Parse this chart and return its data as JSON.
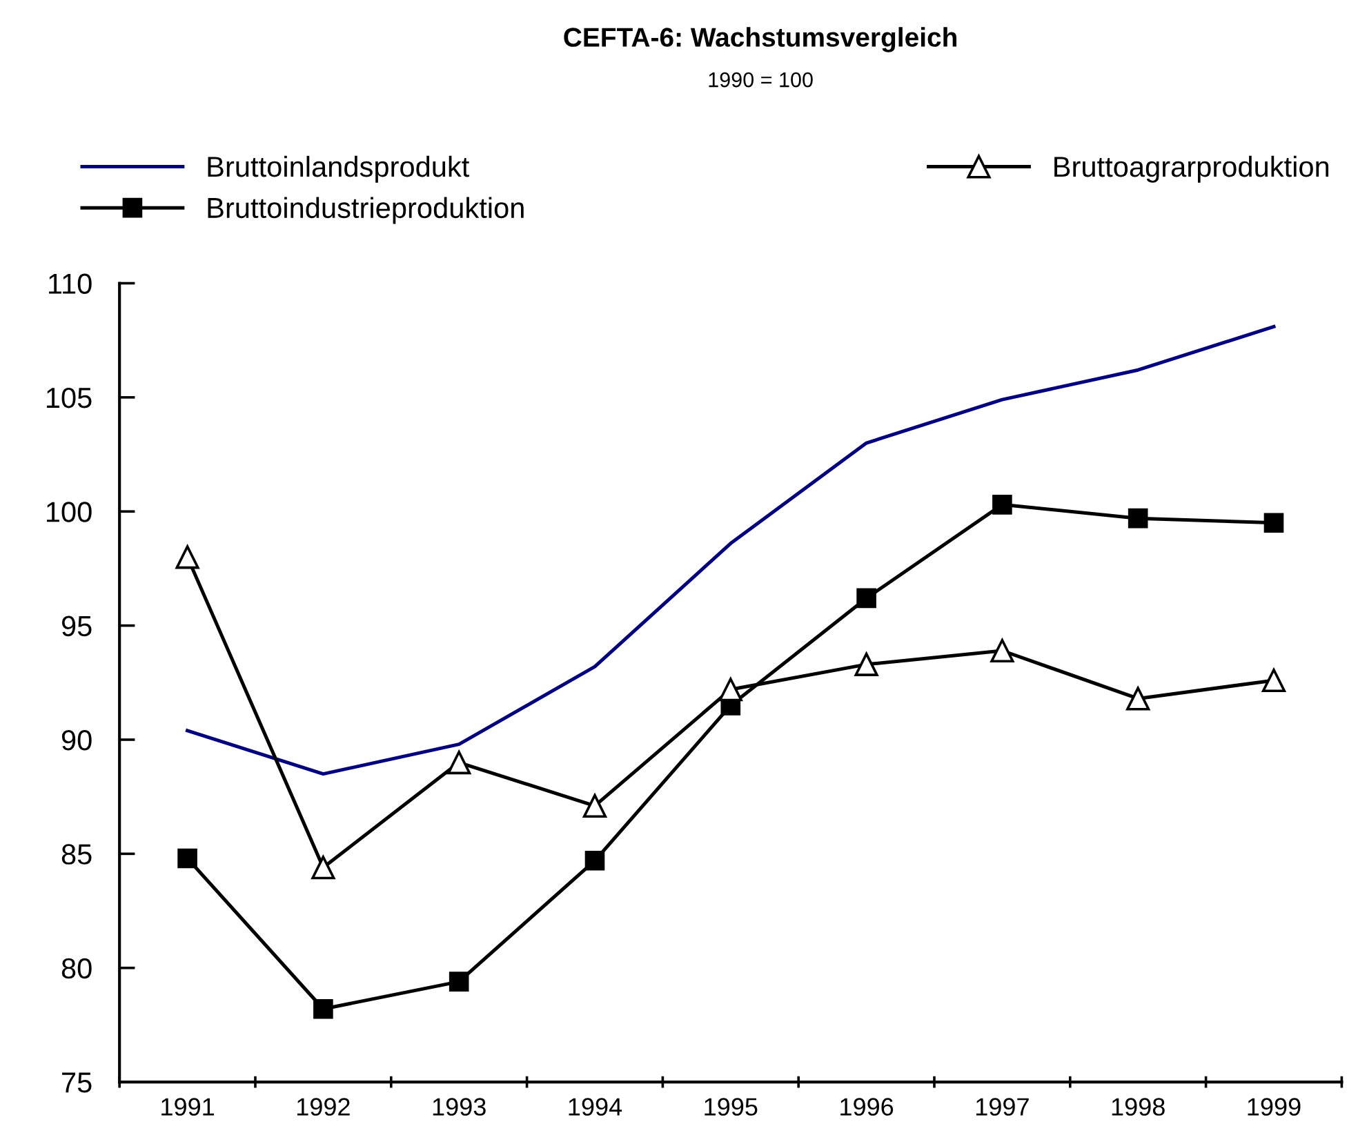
{
  "chart_data": {
    "type": "line",
    "title": "CEFTA-6: Wachstumsvergleich",
    "subtitle": "1990 = 100",
    "categories": [
      "1991",
      "1992",
      "1993",
      "1994",
      "1995",
      "1996",
      "1997",
      "1998",
      "1999"
    ],
    "series": [
      {
        "name": "Bruttoinlandsprodukt",
        "color": "#000080",
        "marker": "none",
        "values": [
          90.4,
          88.5,
          89.8,
          93.2,
          98.6,
          103.0,
          104.9,
          106.2,
          108.1
        ]
      },
      {
        "name": "Bruttoindustrieproduktion",
        "color": "#000000",
        "marker": "square",
        "values": [
          84.8,
          78.2,
          79.4,
          84.7,
          91.5,
          96.2,
          100.3,
          99.7,
          99.5
        ]
      },
      {
        "name": "Bruttoagrarproduktion",
        "color": "#000000",
        "marker": "triangle",
        "values": [
          98.0,
          84.4,
          89.0,
          87.1,
          92.2,
          93.3,
          93.9,
          91.8,
          92.6
        ]
      }
    ],
    "ylim": [
      75,
      110
    ],
    "yticks": [
      75,
      80,
      85,
      90,
      95,
      100,
      105,
      110
    ],
    "grid": false,
    "legend": "top",
    "line_style": "solid"
  }
}
